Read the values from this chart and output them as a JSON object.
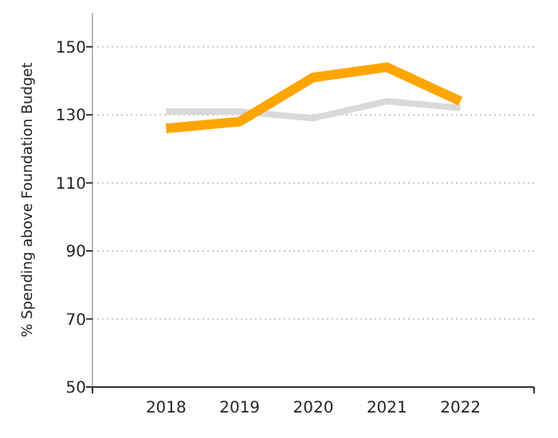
{
  "chart_data": {
    "type": "line",
    "ylabel": "% Spending above Foundation Budget",
    "categories": [
      "2018",
      "2019",
      "2020",
      "2021",
      "2022"
    ],
    "series": [
      {
        "color": "#d9d9d9",
        "values": [
          131,
          131,
          129,
          134,
          132
        ]
      },
      {
        "color": "#ffa500",
        "values": [
          126,
          128,
          141,
          144,
          134
        ]
      }
    ],
    "ylim": [
      50,
      160
    ],
    "yticks": [
      50,
      70,
      90,
      110,
      130,
      150
    ],
    "grid": "y",
    "line_style": "solid",
    "marker": "none"
  }
}
